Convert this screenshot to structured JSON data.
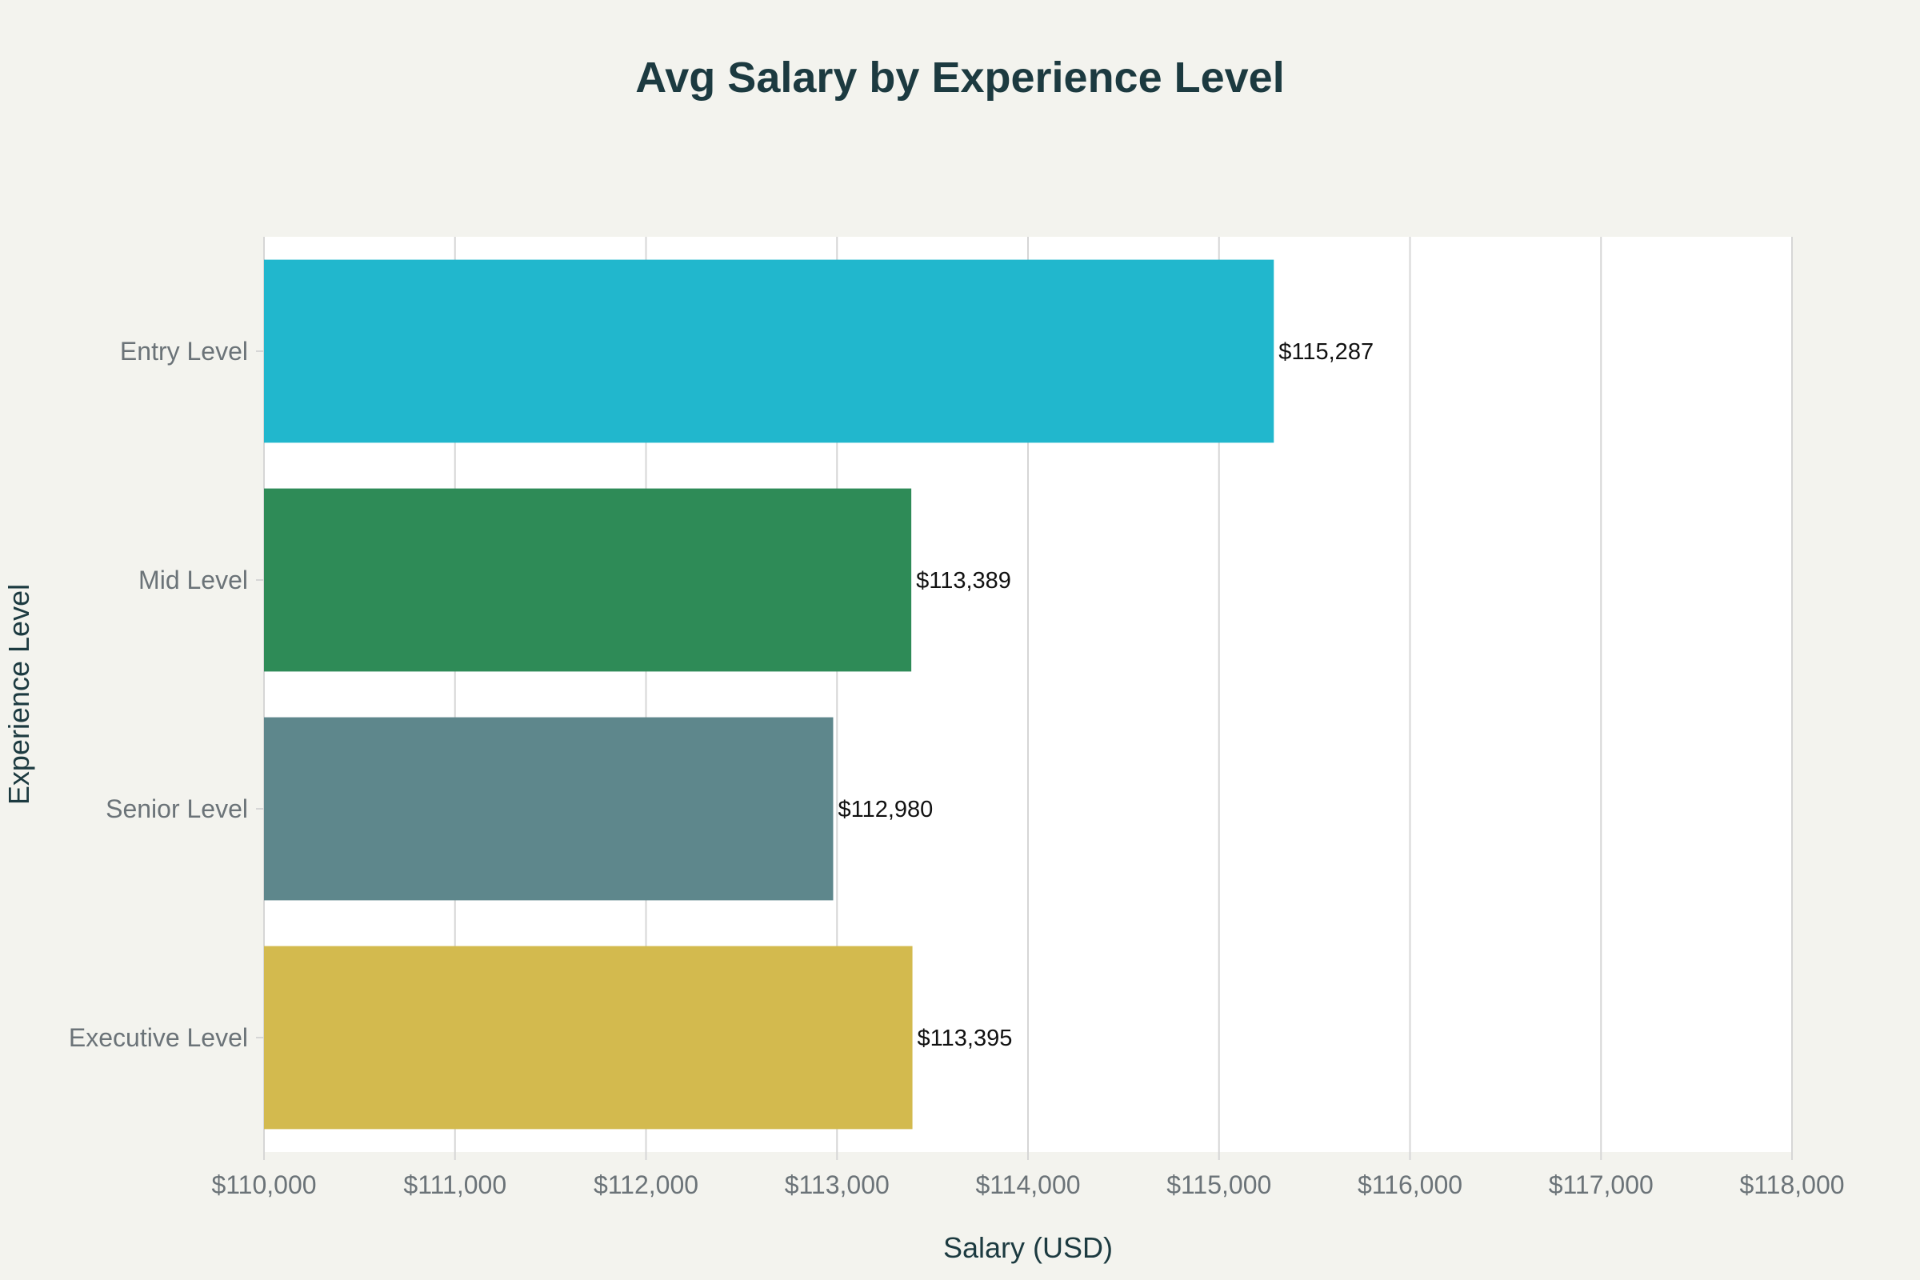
{
  "chart_data": {
    "type": "bar",
    "orientation": "horizontal",
    "title": "Avg Salary by Experience Level",
    "xlabel": "Salary (USD)",
    "ylabel": "Experience Level",
    "categories": [
      "Entry Level",
      "Mid Level",
      "Senior Level",
      "Executive Level"
    ],
    "values": [
      115287,
      113389,
      112980,
      113395
    ],
    "data_labels": [
      "$115,287",
      "$113,389",
      "$112,980",
      "$113,395"
    ],
    "colors": [
      "#21b7cd",
      "#2e8b57",
      "#5e878c",
      "#d3ba4e"
    ],
    "xlim": [
      110000,
      118000
    ],
    "x_ticks": [
      110000,
      111000,
      112000,
      113000,
      114000,
      115000,
      116000,
      117000,
      118000
    ],
    "x_tick_labels": [
      "$110,000",
      "$111,000",
      "$112,000",
      "$113,000",
      "$114,000",
      "$115,000",
      "$116,000",
      "$117,000",
      "$118,000"
    ],
    "grid": true,
    "legend": "none"
  },
  "style": {
    "page_background": "#f3f3ee",
    "plot_background": "#ffffff",
    "grid_color": "#d6d6d6",
    "title_color": "#1c3a40",
    "tick_color": "#6b7378"
  }
}
